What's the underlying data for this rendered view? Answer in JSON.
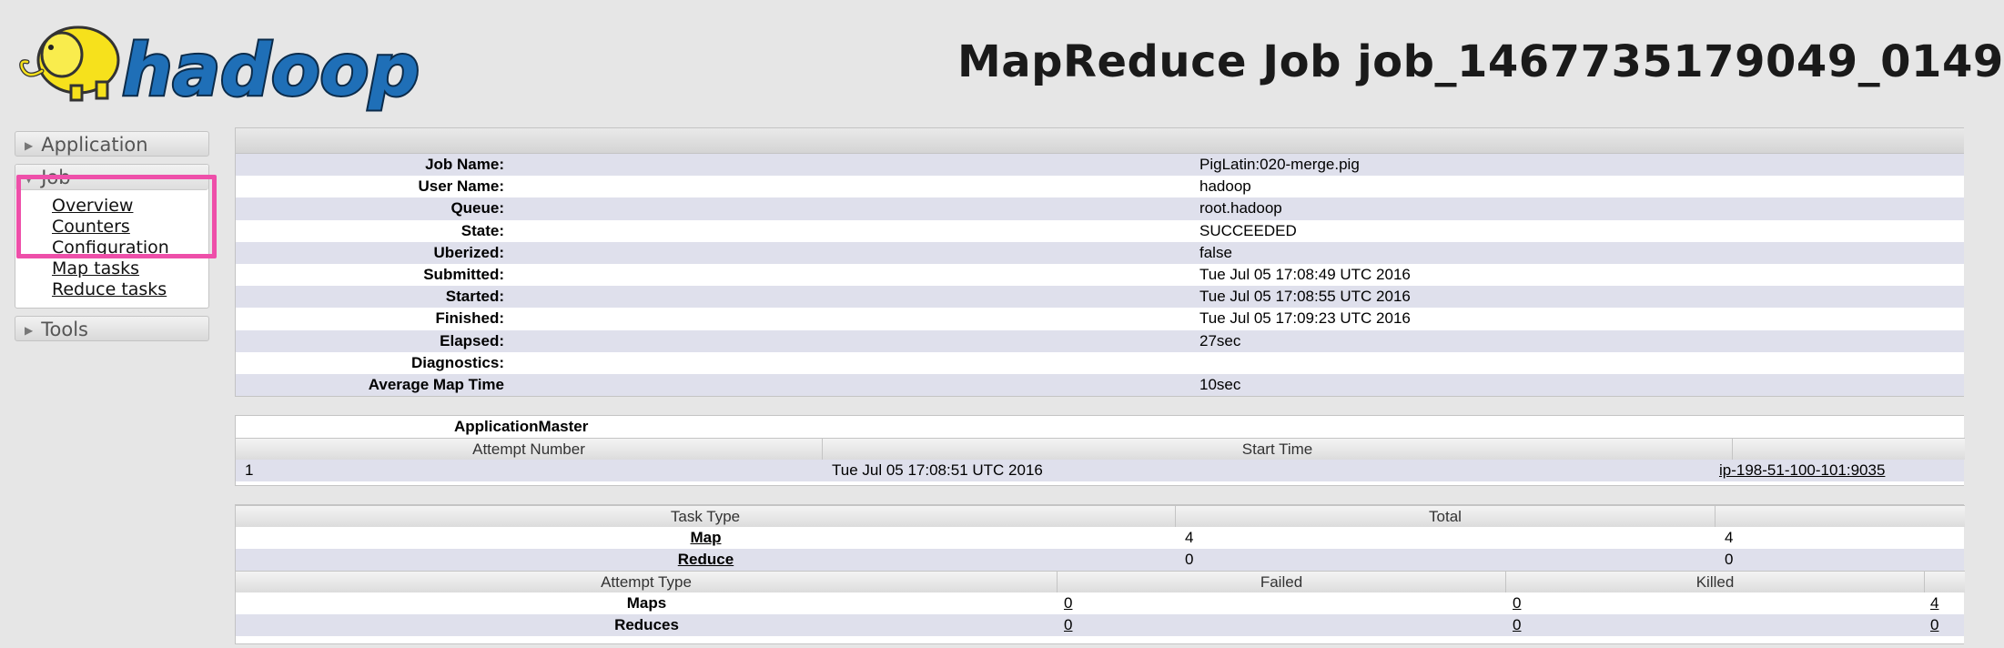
{
  "header": {
    "logo_text": "hadoop",
    "title": "MapReduce Job job_1467735179049_0149"
  },
  "sidebar": {
    "application": "Application",
    "job": "Job",
    "job_links": [
      "Overview",
      "Counters",
      "Configuration",
      "Map tasks",
      "Reduce tasks"
    ],
    "tools": "Tools",
    "highlight_color": "#ee4fa9"
  },
  "job_info": [
    {
      "label": "Job Name:",
      "value": "PigLatin:020-merge.pig"
    },
    {
      "label": "User Name:",
      "value": "hadoop"
    },
    {
      "label": "Queue:",
      "value": "root.hadoop"
    },
    {
      "label": "State:",
      "value": "SUCCEEDED"
    },
    {
      "label": "Uberized:",
      "value": "false"
    },
    {
      "label": "Submitted:",
      "value": "Tue Jul 05 17:08:49 UTC 2016"
    },
    {
      "label": "Started:",
      "value": "Tue Jul 05 17:08:55 UTC 2016"
    },
    {
      "label": "Finished:",
      "value": "Tue Jul 05 17:09:23 UTC 2016"
    },
    {
      "label": "Elapsed:",
      "value": "27sec"
    },
    {
      "label": "Diagnostics:",
      "value": ""
    },
    {
      "label": "Average Map Time",
      "value": "10sec"
    }
  ],
  "application_master": {
    "title": "ApplicationMaster",
    "headers": [
      "Attempt Number",
      "Start Time",
      ""
    ],
    "row": {
      "attempt": "1",
      "start_time": "Tue Jul 05 17:08:51 UTC 2016",
      "node": "ip-198-51-100-101:9035"
    }
  },
  "tasks": {
    "headers": [
      "Task Type",
      "Total",
      ""
    ],
    "rows": [
      {
        "type": "Map",
        "total": "4",
        "complete": "4"
      },
      {
        "type": "Reduce",
        "total": "0",
        "complete": "0"
      }
    ],
    "attempt_headers": [
      "Attempt Type",
      "Failed",
      "Killed",
      ""
    ],
    "attempt_rows": [
      {
        "type": "Maps",
        "failed": "0",
        "killed": "0",
        "successful": "4"
      },
      {
        "type": "Reduces",
        "failed": "0",
        "killed": "0",
        "successful": "0"
      }
    ]
  }
}
